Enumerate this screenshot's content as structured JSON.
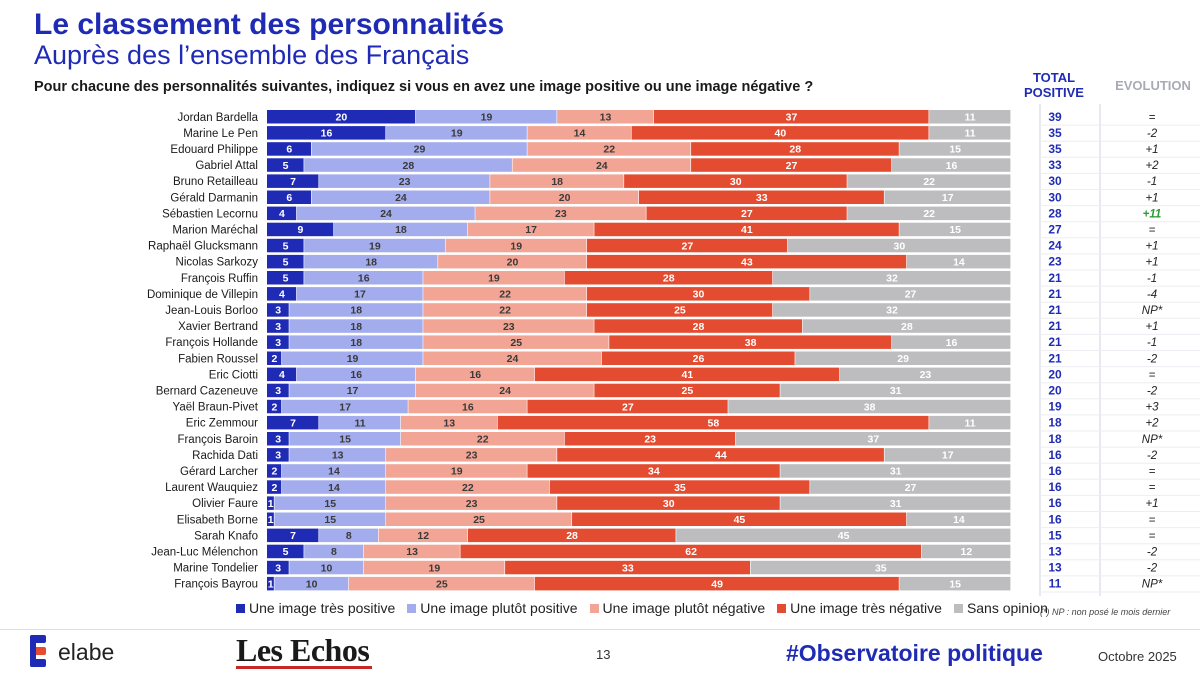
{
  "header": {
    "title": "Le classement des personnalités",
    "subtitle": "Auprès des l’ensemble des Français",
    "question": "Pour chacune des personnalités suivantes, indiquez si vous en avez une image positive ou une image négative ?",
    "total_label_1": "TOTAL",
    "total_label_2": "POSITIVE",
    "evolution_label": "EVOLUTION"
  },
  "chart_data": {
    "type": "bar",
    "orientation": "horizontal",
    "stacked": true,
    "percent_stacked": true,
    "categories": [
      "Jordan Bardella",
      "Marine Le Pen",
      "Edouard Philippe",
      "Gabriel Attal",
      "Bruno Retailleau",
      "Gérald Darmanin",
      "Sébastien Lecornu",
      "Marion Maréchal",
      "Raphaël Glucksmann",
      "Nicolas Sarkozy",
      "François Ruffin",
      "Dominique de Villepin",
      "Jean-Louis Borloo",
      "Xavier Bertrand",
      "François Hollande",
      "Fabien Roussel",
      "Eric Ciotti",
      "Bernard Cazeneuve",
      "Yaël Braun-Pivet",
      "Eric Zemmour",
      "François Baroin",
      "Rachida Dati",
      "Gérard Larcher",
      "Laurent Wauquiez",
      "Olivier Faure",
      "Elisabeth Borne",
      "Sarah Knafo",
      "Jean-Luc Mélenchon",
      "Marine Tondelier",
      "François Bayrou"
    ],
    "series": [
      {
        "name": "Une image très positive",
        "color": "#1f2bb5",
        "values": [
          20,
          16,
          6,
          5,
          7,
          6,
          4,
          9,
          5,
          5,
          5,
          4,
          3,
          3,
          3,
          2,
          4,
          3,
          2,
          7,
          3,
          3,
          2,
          2,
          1,
          1,
          7,
          5,
          3,
          1
        ]
      },
      {
        "name": "Une image plutôt positive",
        "color": "#a3acec",
        "values": [
          19,
          19,
          29,
          28,
          23,
          24,
          24,
          18,
          19,
          18,
          16,
          17,
          18,
          18,
          18,
          19,
          16,
          17,
          17,
          11,
          15,
          13,
          14,
          14,
          15,
          15,
          8,
          8,
          10,
          10
        ]
      },
      {
        "name": "Une image plutôt négative",
        "color": "#f2a595",
        "values": [
          13,
          14,
          22,
          24,
          18,
          20,
          23,
          17,
          19,
          20,
          19,
          22,
          22,
          23,
          25,
          24,
          16,
          24,
          16,
          13,
          22,
          23,
          19,
          22,
          23,
          25,
          12,
          13,
          19,
          25
        ]
      },
      {
        "name": "Une image très négative",
        "color": "#e34c30",
        "values": [
          37,
          40,
          28,
          27,
          30,
          33,
          27,
          41,
          27,
          43,
          28,
          30,
          25,
          28,
          38,
          26,
          41,
          25,
          27,
          58,
          23,
          44,
          34,
          35,
          30,
          45,
          28,
          62,
          33,
          49
        ]
      },
      {
        "name": "Sans opinion",
        "color": "#bdbdbf",
        "values": [
          11,
          11,
          15,
          16,
          22,
          17,
          22,
          15,
          30,
          14,
          32,
          27,
          32,
          28,
          16,
          29,
          23,
          31,
          38,
          11,
          37,
          17,
          31,
          27,
          31,
          14,
          45,
          12,
          35,
          15
        ]
      }
    ],
    "total_positive": [
      39,
      35,
      35,
      33,
      30,
      30,
      28,
      27,
      24,
      23,
      21,
      21,
      21,
      21,
      21,
      21,
      20,
      20,
      19,
      18,
      18,
      16,
      16,
      16,
      16,
      16,
      15,
      13,
      13,
      11
    ],
    "evolution": [
      "=",
      "-2",
      "+1",
      "+2",
      "-1",
      "+1",
      "+11",
      "=",
      "+1",
      "+1",
      "-1",
      "-4",
      "NP*",
      "+1",
      "-1",
      "-2",
      "=",
      "-2",
      "+3",
      "+2",
      "NP*",
      "-2",
      "=",
      "=",
      "+1",
      "=",
      "=",
      "-2",
      "-2",
      "NP*"
    ],
    "evolution_highlight_color": "#2e9b3a",
    "legend_position": "bottom",
    "xlim": [
      0,
      100
    ]
  },
  "footnote": "(*) NP : non posé le mois dernier",
  "footer": {
    "brand": "elabe",
    "partner": "Les Echos",
    "page_number": "13",
    "hashtag": "#Observatoire politique",
    "date": "Octobre 2025"
  }
}
